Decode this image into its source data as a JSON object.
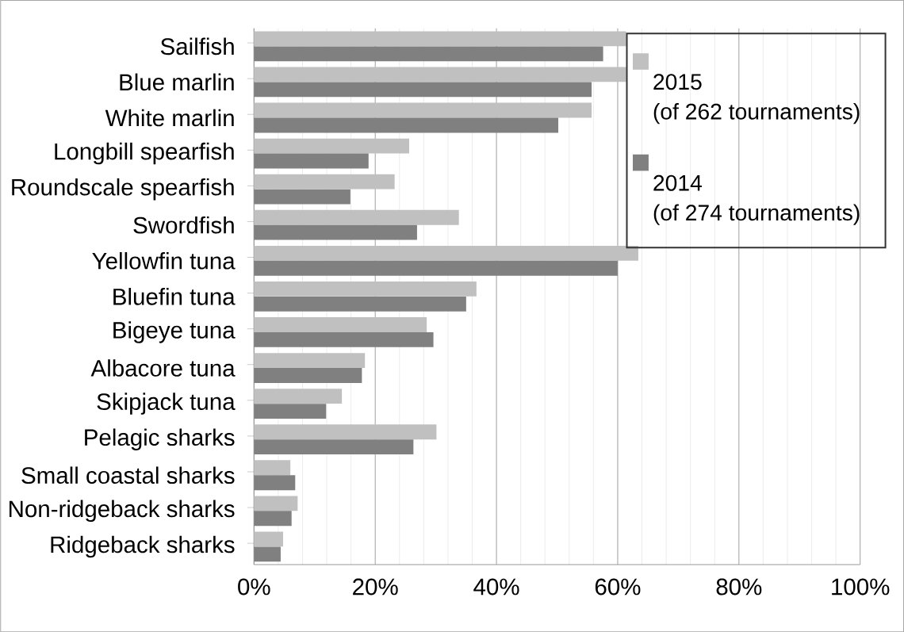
{
  "chart_data": {
    "type": "bar",
    "orientation": "horizontal",
    "categories": [
      "Sailfish",
      "Blue marlin",
      "White marlin",
      "Longbill spearfish",
      "Roundscale spearfish",
      "Swordfish",
      "Yellowfin tuna",
      "Bluefin tuna",
      "Bigeye tuna",
      "Albacore tuna",
      "Skipjack tuna",
      "Pelagic sharks",
      "Small coastal sharks",
      "Non-ridgeback sharks",
      "Ridgeback sharks"
    ],
    "series": [
      {
        "name": "2015 (of 262 tournaments)",
        "color": "#c0c0c0",
        "values": [
          61.4,
          61.4,
          55.7,
          25.6,
          23.2,
          33.8,
          63.4,
          36.7,
          28.5,
          18.3,
          14.5,
          30.1,
          6.0,
          7.2,
          4.8
        ]
      },
      {
        "name": "2014 (of 274 tournaments)",
        "color": "#808080",
        "values": [
          57.6,
          55.7,
          50.2,
          18.9,
          15.9,
          26.9,
          60.0,
          35.0,
          29.6,
          17.8,
          11.9,
          26.3,
          6.8,
          6.2,
          4.4
        ]
      }
    ],
    "xlim": [
      0,
      100
    ],
    "xticks": [
      {
        "value": 0,
        "label": "0%"
      },
      {
        "value": 20,
        "label": "20%"
      },
      {
        "value": 40,
        "label": "40%"
      },
      {
        "value": 60,
        "label": "60%"
      },
      {
        "value": 80,
        "label": "80%"
      },
      {
        "value": 100,
        "label": "100%"
      }
    ],
    "grid": "x",
    "legend": "top right"
  }
}
